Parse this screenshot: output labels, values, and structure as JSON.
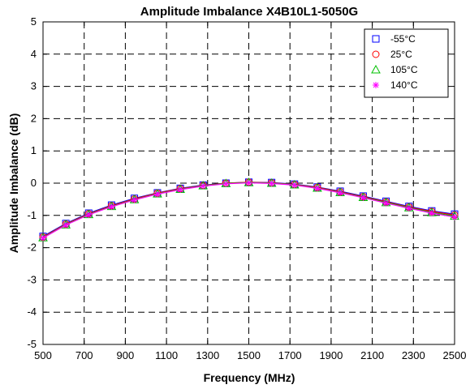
{
  "chart_data": {
    "type": "line",
    "title": "Amplitude Imbalance  X4B10L1-5050G",
    "xlabel": "Frequency (MHz)",
    "ylabel": "Amplitude Imbalance (dB)",
    "xlim": [
      500,
      2500
    ],
    "ylim": [
      -5,
      5
    ],
    "xticks": [
      500,
      700,
      900,
      1100,
      1300,
      1500,
      1700,
      1900,
      2100,
      2300,
      2500
    ],
    "yticks": [
      -5,
      -4,
      -3,
      -2,
      -1,
      0,
      1,
      2,
      3,
      4,
      5
    ],
    "grid": true,
    "legend_position": "top-right",
    "x": [
      500,
      611,
      722,
      833,
      944,
      1056,
      1167,
      1278,
      1389,
      1500,
      1611,
      1722,
      1833,
      1944,
      2056,
      2167,
      2278,
      2389,
      2500
    ],
    "series": [
      {
        "name": "-55°C",
        "marker": "square",
        "color": "#0000ff",
        "values": [
          -1.65,
          -1.25,
          -0.93,
          -0.68,
          -0.47,
          -0.3,
          -0.16,
          -0.06,
          0.0,
          0.03,
          0.02,
          -0.03,
          -0.12,
          -0.25,
          -0.4,
          -0.56,
          -0.72,
          -0.86,
          -0.96
        ]
      },
      {
        "name": "25°C",
        "marker": "circle",
        "color": "#ff0000",
        "values": [
          -1.67,
          -1.27,
          -0.95,
          -0.7,
          -0.49,
          -0.31,
          -0.17,
          -0.07,
          0.0,
          0.03,
          0.01,
          -0.04,
          -0.13,
          -0.27,
          -0.42,
          -0.58,
          -0.74,
          -0.88,
          -0.99
        ]
      },
      {
        "name": "105°C",
        "marker": "triangle",
        "color": "#00c000",
        "values": [
          -1.69,
          -1.29,
          -0.97,
          -0.72,
          -0.51,
          -0.33,
          -0.19,
          -0.08,
          -0.01,
          0.02,
          0.0,
          -0.05,
          -0.15,
          -0.29,
          -0.44,
          -0.6,
          -0.76,
          -0.91,
          -1.02
        ]
      },
      {
        "name": "140°C",
        "marker": "asterisk",
        "color": "#ff00ff",
        "values": [
          -1.7,
          -1.3,
          -0.98,
          -0.73,
          -0.52,
          -0.34,
          -0.2,
          -0.09,
          -0.02,
          0.01,
          -0.01,
          -0.06,
          -0.16,
          -0.3,
          -0.45,
          -0.62,
          -0.78,
          -0.93,
          -1.05
        ]
      }
    ]
  }
}
